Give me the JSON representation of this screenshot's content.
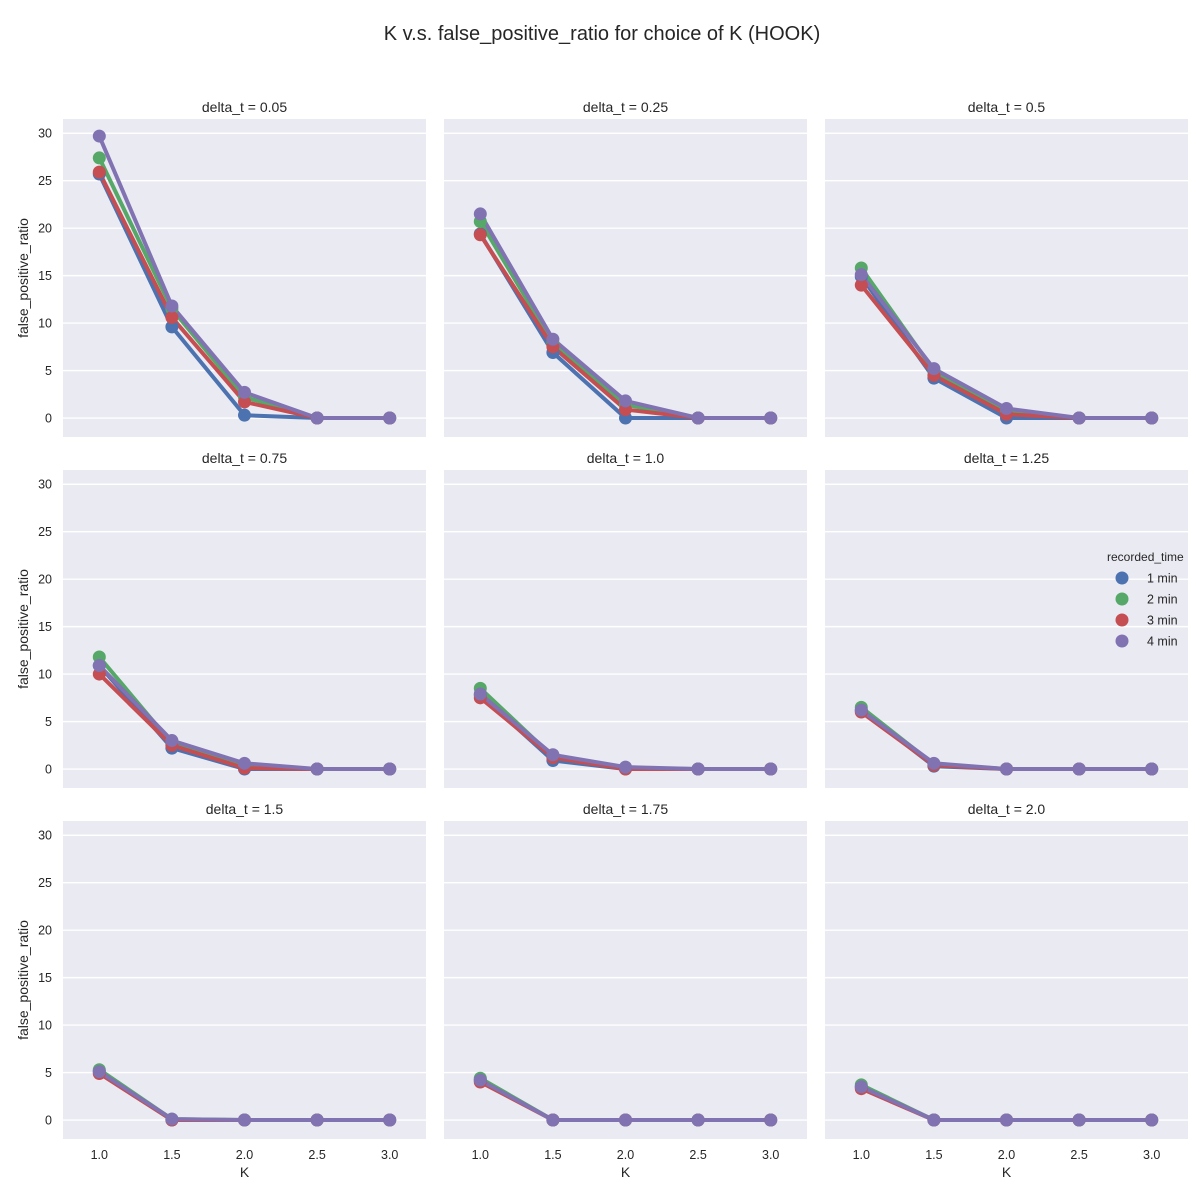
{
  "chart_data": {
    "type": "line",
    "title": "K v.s. false_positive_ratio for choice of K (HOOK)",
    "xlabel": "K",
    "ylabel": "false_positive_ratio",
    "x": [
      1.0,
      1.5,
      2.0,
      2.5,
      3.0
    ],
    "x_tick_labels": [
      "1.0",
      "1.5",
      "2.0",
      "2.5",
      "3.0"
    ],
    "y_ticks": [
      0,
      5,
      10,
      15,
      20,
      25,
      30
    ],
    "ylim": [
      -2,
      31.5
    ],
    "grid": true,
    "legend": {
      "title": "recorded_time",
      "placement": "right",
      "entries": [
        "1 min",
        "2  min",
        "3 min",
        "4 min"
      ],
      "colors": [
        "#4C72B0",
        "#55A868",
        "#C44E52",
        "#8172B2"
      ]
    },
    "panels": [
      {
        "title": "delta_t = 0.05",
        "series": [
          {
            "name": "1 min",
            "values": [
              25.7,
              9.6,
              0.3,
              0.0,
              0.0
            ]
          },
          {
            "name": "2  min",
            "values": [
              27.4,
              11.5,
              2.2,
              0.0,
              0.0
            ]
          },
          {
            "name": "3 min",
            "values": [
              25.9,
              10.6,
              1.7,
              0.0,
              0.0
            ]
          },
          {
            "name": "4 min",
            "values": [
              29.7,
              11.8,
              2.7,
              0.0,
              0.0
            ]
          }
        ]
      },
      {
        "title": "delta_t = 0.25",
        "series": [
          {
            "name": "1 min",
            "values": [
              19.4,
              6.9,
              0.0,
              0.0,
              0.0
            ]
          },
          {
            "name": "2  min",
            "values": [
              20.7,
              7.9,
              1.4,
              0.0,
              0.0
            ]
          },
          {
            "name": "3 min",
            "values": [
              19.3,
              7.5,
              0.9,
              0.0,
              0.0
            ]
          },
          {
            "name": "4 min",
            "values": [
              21.5,
              8.3,
              1.8,
              0.0,
              0.0
            ]
          }
        ]
      },
      {
        "title": "delta_t = 0.5",
        "series": [
          {
            "name": "1 min",
            "values": [
              14.9,
              4.2,
              0.0,
              0.0,
              0.0
            ]
          },
          {
            "name": "2  min",
            "values": [
              15.8,
              5.0,
              0.7,
              0.0,
              0.0
            ]
          },
          {
            "name": "3 min",
            "values": [
              14.0,
              4.5,
              0.4,
              0.0,
              0.0
            ]
          },
          {
            "name": "4 min",
            "values": [
              15.1,
              5.2,
              1.0,
              0.0,
              0.0
            ]
          }
        ]
      },
      {
        "title": "delta_t = 0.75",
        "series": [
          {
            "name": "1 min",
            "values": [
              10.9,
              2.2,
              0.0,
              0.0,
              0.0
            ]
          },
          {
            "name": "2  min",
            "values": [
              11.8,
              2.7,
              0.3,
              0.0,
              0.0
            ]
          },
          {
            "name": "3 min",
            "values": [
              10.0,
              2.5,
              0.1,
              0.0,
              0.0
            ]
          },
          {
            "name": "4 min",
            "values": [
              10.9,
              3.0,
              0.6,
              0.0,
              0.0
            ]
          }
        ]
      },
      {
        "title": "delta_t = 1.0",
        "series": [
          {
            "name": "1 min",
            "values": [
              7.8,
              0.9,
              0.0,
              0.0,
              0.0
            ]
          },
          {
            "name": "2  min",
            "values": [
              8.5,
              1.3,
              0.1,
              0.0,
              0.0
            ]
          },
          {
            "name": "3 min",
            "values": [
              7.5,
              1.2,
              0.0,
              0.0,
              0.0
            ]
          },
          {
            "name": "4 min",
            "values": [
              7.9,
              1.5,
              0.2,
              0.0,
              0.0
            ]
          }
        ]
      },
      {
        "title": "delta_t = 1.25",
        "series": [
          {
            "name": "1 min",
            "values": [
              6.2,
              0.3,
              0.0,
              0.0,
              0.0
            ]
          },
          {
            "name": "2  min",
            "values": [
              6.5,
              0.5,
              0.0,
              0.0,
              0.0
            ]
          },
          {
            "name": "3 min",
            "values": [
              6.0,
              0.4,
              0.0,
              0.0,
              0.0
            ]
          },
          {
            "name": "4 min",
            "values": [
              6.2,
              0.6,
              0.0,
              0.0,
              0.0
            ]
          }
        ]
      },
      {
        "title": "delta_t = 1.5",
        "series": [
          {
            "name": "1 min",
            "values": [
              5.1,
              0.0,
              0.0,
              0.0,
              0.0
            ]
          },
          {
            "name": "2  min",
            "values": [
              5.3,
              0.1,
              0.0,
              0.0,
              0.0
            ]
          },
          {
            "name": "3 min",
            "values": [
              4.9,
              0.0,
              0.0,
              0.0,
              0.0
            ]
          },
          {
            "name": "4 min",
            "values": [
              5.1,
              0.1,
              0.0,
              0.0,
              0.0
            ]
          }
        ]
      },
      {
        "title": "delta_t = 1.75",
        "series": [
          {
            "name": "1 min",
            "values": [
              4.2,
              0.0,
              0.0,
              0.0,
              0.0
            ]
          },
          {
            "name": "2  min",
            "values": [
              4.4,
              0.0,
              0.0,
              0.0,
              0.0
            ]
          },
          {
            "name": "3 min",
            "values": [
              4.0,
              0.0,
              0.0,
              0.0,
              0.0
            ]
          },
          {
            "name": "4 min",
            "values": [
              4.2,
              0.0,
              0.0,
              0.0,
              0.0
            ]
          }
        ]
      },
      {
        "title": "delta_t = 2.0",
        "series": [
          {
            "name": "1 min",
            "values": [
              3.5,
              0.0,
              0.0,
              0.0,
              0.0
            ]
          },
          {
            "name": "2  min",
            "values": [
              3.7,
              0.0,
              0.0,
              0.0,
              0.0
            ]
          },
          {
            "name": "3 min",
            "values": [
              3.3,
              0.0,
              0.0,
              0.0,
              0.0
            ]
          },
          {
            "name": "4 min",
            "values": [
              3.5,
              0.0,
              0.0,
              0.0,
              0.0
            ]
          }
        ]
      }
    ]
  }
}
